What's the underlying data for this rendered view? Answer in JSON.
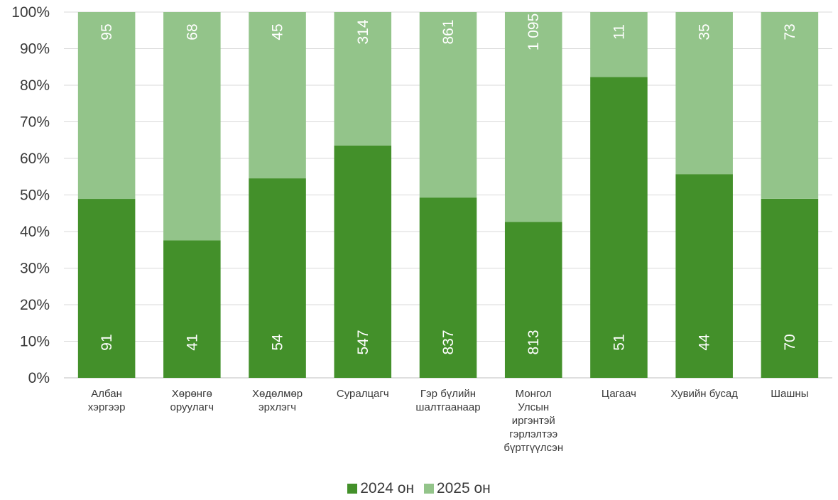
{
  "chart_data": {
    "type": "bar",
    "stacked": "percent",
    "categories": [
      [
        "Албан",
        "хэргээр"
      ],
      [
        "Хөрөнгө",
        "оруулагч"
      ],
      [
        "Хөдөлмөр",
        "эрхлэгч"
      ],
      [
        "Суралцагч"
      ],
      [
        "Гэр бүлийн",
        "шалтгаанаар"
      ],
      [
        "Монгол",
        "Улсын",
        "иргэнтэй",
        "гэрлэлтээ",
        "бүртгүүлсэн"
      ],
      [
        "Цагаач"
      ],
      [
        "Хувийн бусад"
      ],
      [
        "Шашны"
      ]
    ],
    "series": [
      {
        "name": "2024 он",
        "color": "#43902a",
        "values": [
          91,
          41,
          54,
          547,
          837,
          813,
          51,
          44,
          70
        ],
        "labels": [
          "91",
          "41",
          "54",
          "547",
          "837",
          "813",
          "51",
          "44",
          "70"
        ]
      },
      {
        "name": "2025 он",
        "color": "#93c48a",
        "values": [
          95,
          68,
          45,
          314,
          861,
          1095,
          11,
          35,
          73
        ],
        "labels": [
          "95",
          "68",
          "45",
          "314",
          "861",
          "1 095",
          "11",
          "35",
          "73"
        ]
      }
    ],
    "yticks": [
      "0%",
      "10%",
      "20%",
      "30%",
      "40%",
      "50%",
      "60%",
      "70%",
      "80%",
      "90%",
      "100%"
    ],
    "ylim": [
      0,
      100
    ],
    "grid": true,
    "legend": "bottom",
    "value_label_rotation": -90
  }
}
